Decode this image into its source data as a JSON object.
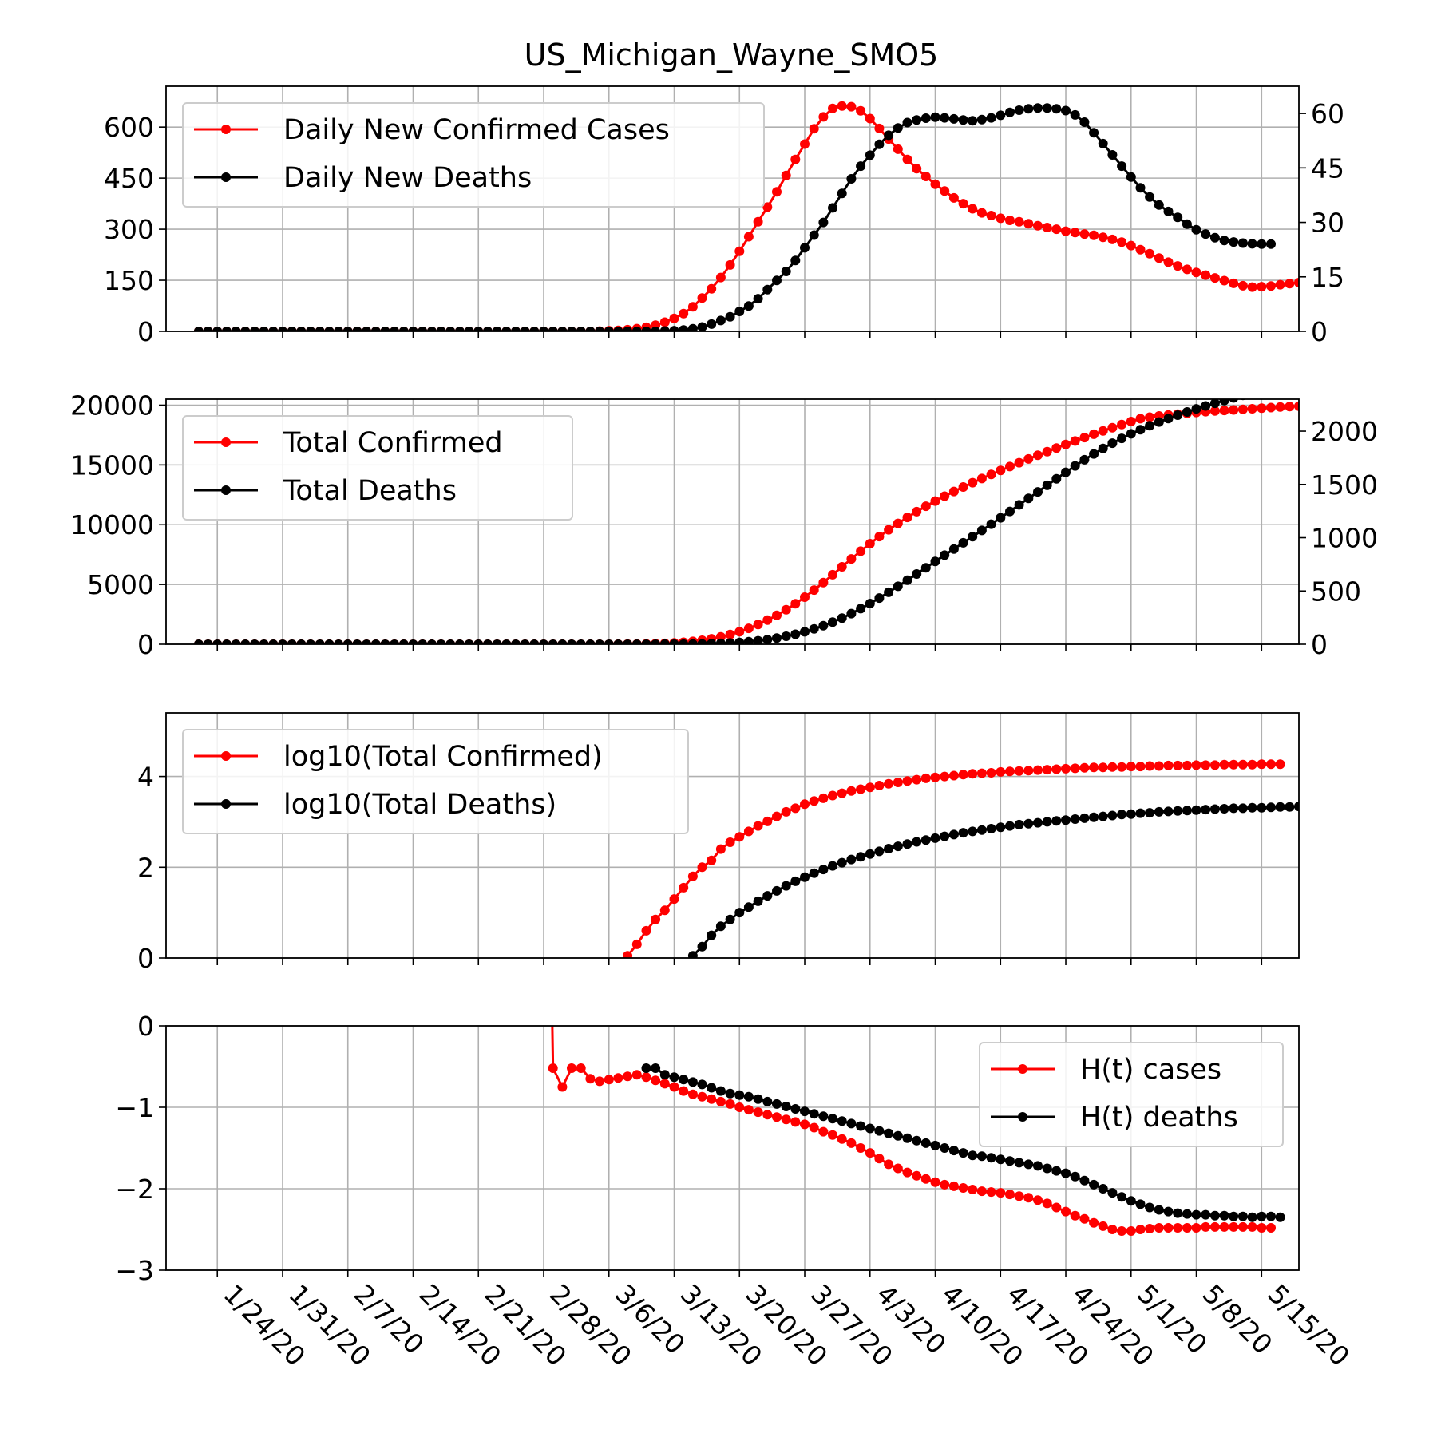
{
  "chart_data": {
    "title": "US_Michigan_Wayne_SMO5",
    "type": "line",
    "x_dates": [
      "1/22/20",
      "1/23/20",
      "1/24/20",
      "1/25/20",
      "1/26/20",
      "1/27/20",
      "1/28/20",
      "1/29/20",
      "1/30/20",
      "1/31/20",
      "2/1/20",
      "2/2/20",
      "2/3/20",
      "2/4/20",
      "2/5/20",
      "2/6/20",
      "2/7/20",
      "2/8/20",
      "2/9/20",
      "2/10/20",
      "2/11/20",
      "2/12/20",
      "2/13/20",
      "2/14/20",
      "2/15/20",
      "2/16/20",
      "2/17/20",
      "2/18/20",
      "2/19/20",
      "2/20/20",
      "2/21/20",
      "2/22/20",
      "2/23/20",
      "2/24/20",
      "2/25/20",
      "2/26/20",
      "2/27/20",
      "2/28/20",
      "2/29/20",
      "3/1/20",
      "3/2/20",
      "3/3/20",
      "3/4/20",
      "3/5/20",
      "3/6/20",
      "3/7/20",
      "3/8/20",
      "3/9/20",
      "3/10/20",
      "3/11/20",
      "3/12/20",
      "3/13/20",
      "3/14/20",
      "3/15/20",
      "3/16/20",
      "3/17/20",
      "3/18/20",
      "3/19/20",
      "3/20/20",
      "3/21/20",
      "3/22/20",
      "3/23/20",
      "3/24/20",
      "3/25/20",
      "3/26/20",
      "3/27/20",
      "3/28/20",
      "3/29/20",
      "3/30/20",
      "3/31/20",
      "4/1/20",
      "4/2/20",
      "4/3/20",
      "4/4/20",
      "4/5/20",
      "4/6/20",
      "4/7/20",
      "4/8/20",
      "4/9/20",
      "4/10/20",
      "4/11/20",
      "4/12/20",
      "4/13/20",
      "4/14/20",
      "4/15/20",
      "4/16/20",
      "4/17/20",
      "4/18/20",
      "4/19/20",
      "4/20/20",
      "4/21/20",
      "4/22/20",
      "4/23/20",
      "4/24/20",
      "4/25/20",
      "4/26/20",
      "4/27/20",
      "4/28/20",
      "4/29/20",
      "4/30/20",
      "5/1/20",
      "5/2/20",
      "5/3/20",
      "5/4/20",
      "5/5/20",
      "5/6/20",
      "5/7/20",
      "5/8/20",
      "5/9/20",
      "5/10/20",
      "5/11/20",
      "5/12/20",
      "5/13/20",
      "5/14/20",
      "5/15/20",
      "5/16/20",
      "5/17/20"
    ],
    "x_ticks": [
      "1/24/20",
      "1/31/20",
      "2/7/20",
      "2/14/20",
      "2/21/20",
      "2/28/20",
      "3/6/20",
      "3/13/20",
      "3/20/20",
      "3/27/20",
      "4/3/20",
      "4/10/20",
      "4/17/20",
      "4/24/20",
      "5/1/20",
      "5/8/20",
      "5/15/20"
    ],
    "panels": [
      {
        "legend": "top-left",
        "y_left": {
          "lim": [
            0,
            720
          ],
          "ticks": [
            0,
            150,
            300,
            450,
            600
          ]
        },
        "y_right": {
          "lim": [
            0,
            67.5
          ],
          "ticks": [
            0,
            15,
            30,
            45,
            60
          ]
        },
        "series": [
          {
            "name": "Daily New Confirmed Cases",
            "color": "#ff0000",
            "axis": "left",
            "start_date": "1/22/20",
            "pad_zeros": 43,
            "values": [
              1,
              2,
              3,
              5,
              8,
              12,
              18,
              27,
              38,
              52,
              72,
              98,
              125,
              158,
              195,
              235,
              278,
              322,
              365,
              410,
              458,
              505,
              550,
              595,
              630,
              655,
              662,
              660,
              648,
              625,
              596,
              565,
              535,
              505,
              478,
              455,
              432,
              412,
              392,
              375,
              360,
              348,
              340,
              332,
              326,
              322,
              316,
              310,
              305,
              300,
              294,
              290,
              286,
              282,
              276,
              270,
              262,
              252,
              240,
              228,
              215,
              203,
              192,
              182,
              173,
              165,
              157,
              149,
              141,
              134,
              130,
              131,
              133,
              137,
              140,
              143,
              145,
              146,
              147,
              147,
              146
            ]
          },
          {
            "name": "Daily New Deaths",
            "color": "#000000",
            "axis": "right",
            "start_date": "1/22/20",
            "pad_zeros": 50,
            "values": [
              0.1,
              0.2,
              0.4,
              0.7,
              1.2,
              2,
              3,
              4,
              5.5,
              7,
              9,
              11.5,
              14,
              16.5,
              19.5,
              23,
              26.5,
              30,
              34,
              38,
              42,
              45.5,
              48.5,
              51.5,
              54,
              56,
              57.5,
              58.2,
              58.7,
              59,
              58.8,
              58.5,
              58.2,
              58,
              58.3,
              58.8,
              59.5,
              60.3,
              60.9,
              61.3,
              61.5,
              61.5,
              61.3,
              60.8,
              59.6,
              57.6,
              54.7,
              51.7,
              48.6,
              45.5,
              42.5,
              39.5,
              37,
              34.8,
              33,
              31.4,
              29.5,
              28,
              26.8,
              25.8,
              25,
              24.6,
              24.3,
              24.1,
              24,
              24
            ]
          }
        ]
      },
      {
        "legend": "top-left",
        "y_left": {
          "lim": [
            0,
            20500
          ],
          "ticks": [
            0,
            5000,
            10000,
            15000,
            20000
          ]
        },
        "y_right": {
          "lim": [
            0,
            2300
          ],
          "ticks": [
            0,
            500,
            1000,
            1500,
            2000
          ]
        },
        "series": [
          {
            "name": "Total Confirmed",
            "color": "#ff0000",
            "axis": "left",
            "start_date": "1/22/20",
            "pad_zeros": 43,
            "values": [
              1,
              3,
              6,
              11,
              19,
              31,
              49,
              76,
              114,
              166,
              238,
              336,
              461,
              619,
              814,
              1049,
              1327,
              1649,
              2014,
              2424,
              2882,
              3387,
              3937,
              4532,
              5162,
              5817,
              6479,
              7139,
              7787,
              8412,
              9008,
              9573,
              10108,
              10613,
              11091,
              11546,
              11978,
              12390,
              12782,
              13157,
              13517,
              13865,
              14205,
              14537,
              14863,
              15185,
              15501,
              15811,
              16116,
              16416,
              16710,
              17000,
              17286,
              17568,
              17844,
              18114,
              18376,
              18628,
              18868,
              19000,
              19100,
              19180,
              19250,
              19320,
              19390,
              19460,
              19520,
              19560,
              19600,
              19650,
              19700,
              19750,
              19800,
              19850,
              19880,
              19920,
              19960,
              20000,
              20040,
              20080,
              20120
            ]
          },
          {
            "name": "Total Deaths",
            "color": "#000000",
            "axis": "right",
            "start_date": "1/22/20",
            "pad_zeros": 50,
            "values": [
              1,
              1,
              1,
              2,
              3,
              5,
              8,
              12,
              17,
              24,
              33,
              44,
              58,
              75,
              94,
              117,
              144,
              174,
              208,
              246,
              288,
              334,
              382,
              434,
              488,
              544,
              601,
              659,
              718,
              777,
              836,
              894,
              952,
              1010,
              1068,
              1127,
              1187,
              1247,
              1308,
              1369,
              1430,
              1492,
              1553,
              1614,
              1674,
              1731,
              1786,
              1838,
              1887,
              1932,
              1975,
              2014,
              2051,
              2086,
              2119,
              2150,
              2180,
              2209,
              2236,
              2262,
              2287,
              2312,
              2336,
              2360,
              2384,
              2408
            ]
          }
        ]
      },
      {
        "legend": "top-left",
        "y_left": {
          "lim": [
            0,
            5.4
          ],
          "ticks": [
            0,
            2,
            4
          ]
        },
        "series": [
          {
            "name": "log10(Total Confirmed)",
            "color": "#ff0000",
            "axis": "left",
            "start_date": "3/8/20",
            "values": [
              0.05,
              0.3,
              0.6,
              0.85,
              1.05,
              1.3,
              1.55,
              1.8,
              2.0,
              2.15,
              2.4,
              2.55,
              2.67,
              2.79,
              2.91,
              3.01,
              3.12,
              3.22,
              3.3,
              3.39,
              3.46,
              3.52,
              3.58,
              3.63,
              3.68,
              3.72,
              3.76,
              3.8,
              3.84,
              3.87,
              3.9,
              3.93,
              3.96,
              3.98,
              4.0,
              4.02,
              4.04,
              4.06,
              4.07,
              4.08,
              4.1,
              4.11,
              4.12,
              4.13,
              4.14,
              4.15,
              4.16,
              4.17,
              4.18,
              4.19,
              4.2,
              4.2,
              4.21,
              4.21,
              4.22,
              4.22,
              4.23,
              4.23,
              4.24,
              4.24,
              4.24,
              4.25,
              4.25,
              4.25,
              4.26,
              4.26,
              4.26,
              4.26,
              4.27,
              4.27,
              4.27
            ]
          },
          {
            "name": "log10(Total Deaths)",
            "color": "#000000",
            "axis": "right",
            "start_date": "3/15/20",
            "values": [
              0.05,
              0.25,
              0.5,
              0.7,
              0.85,
              1.0,
              1.12,
              1.25,
              1.37,
              1.48,
              1.59,
              1.69,
              1.78,
              1.87,
              1.95,
              2.03,
              2.1,
              2.17,
              2.23,
              2.29,
              2.35,
              2.41,
              2.46,
              2.51,
              2.56,
              2.6,
              2.64,
              2.68,
              2.72,
              2.76,
              2.79,
              2.82,
              2.85,
              2.88,
              2.91,
              2.94,
              2.96,
              2.98,
              3.0,
              3.02,
              3.04,
              3.06,
              3.08,
              3.1,
              3.12,
              3.14,
              3.16,
              3.17,
              3.19,
              3.2,
              3.22,
              3.23,
              3.24,
              3.25,
              3.26,
              3.27,
              3.28,
              3.29,
              3.3,
              3.3,
              3.31,
              3.31,
              3.32,
              3.33,
              3.33,
              3.34
            ]
          }
        ]
      },
      {
        "legend": "top-right",
        "y_left": {
          "lim": [
            -3,
            0
          ],
          "ticks": [
            0,
            -1,
            -2,
            -3
          ],
          "tick_labels": [
            "0",
            "−1",
            "−2",
            "−3"
          ]
        },
        "series": [
          {
            "name": "H(t) cases",
            "color": "#ff0000",
            "axis": "left",
            "start_date": "2/29/20",
            "lead_points": [
              [
                -0.1,
                0.2
              ]
            ],
            "values": [
              -0.52,
              -0.75,
              -0.52,
              -0.52,
              -0.65,
              -0.68,
              -0.66,
              -0.64,
              -0.62,
              -0.6,
              -0.63,
              -0.67,
              -0.71,
              -0.75,
              -0.8,
              -0.84,
              -0.87,
              -0.9,
              -0.93,
              -0.96,
              -1.0,
              -1.03,
              -1.06,
              -1.09,
              -1.12,
              -1.15,
              -1.18,
              -1.21,
              -1.25,
              -1.3,
              -1.34,
              -1.39,
              -1.44,
              -1.5,
              -1.56,
              -1.63,
              -1.7,
              -1.75,
              -1.8,
              -1.84,
              -1.88,
              -1.92,
              -1.95,
              -1.97,
              -1.99,
              -2.01,
              -2.03,
              -2.04,
              -2.05,
              -2.07,
              -2.09,
              -2.11,
              -2.14,
              -2.18,
              -2.23,
              -2.28,
              -2.33,
              -2.37,
              -2.42,
              -2.46,
              -2.5,
              -2.52,
              -2.52,
              -2.5,
              -2.49,
              -2.48,
              -2.48,
              -2.48,
              -2.48,
              -2.48,
              -2.47,
              -2.47,
              -2.47,
              -2.47,
              -2.47,
              -2.47,
              -2.48,
              -2.48
            ]
          },
          {
            "name": "H(t) deaths",
            "color": "#000000",
            "axis": "left",
            "start_date": "3/10/20",
            "values": [
              -0.52,
              -0.52,
              -0.6,
              -0.63,
              -0.66,
              -0.69,
              -0.72,
              -0.76,
              -0.8,
              -0.83,
              -0.85,
              -0.87,
              -0.9,
              -0.93,
              -0.96,
              -0.99,
              -1.02,
              -1.05,
              -1.08,
              -1.11,
              -1.14,
              -1.17,
              -1.2,
              -1.23,
              -1.26,
              -1.29,
              -1.32,
              -1.35,
              -1.38,
              -1.41,
              -1.44,
              -1.47,
              -1.5,
              -1.53,
              -1.56,
              -1.59,
              -1.6,
              -1.62,
              -1.64,
              -1.66,
              -1.68,
              -1.7,
              -1.72,
              -1.75,
              -1.78,
              -1.81,
              -1.85,
              -1.9,
              -1.95,
              -2.0,
              -2.05,
              -2.1,
              -2.15,
              -2.19,
              -2.23,
              -2.26,
              -2.28,
              -2.3,
              -2.31,
              -2.32,
              -2.32,
              -2.33,
              -2.33,
              -2.34,
              -2.34,
              -2.35,
              -2.34,
              -2.34,
              -2.35
            ]
          }
        ]
      }
    ]
  }
}
